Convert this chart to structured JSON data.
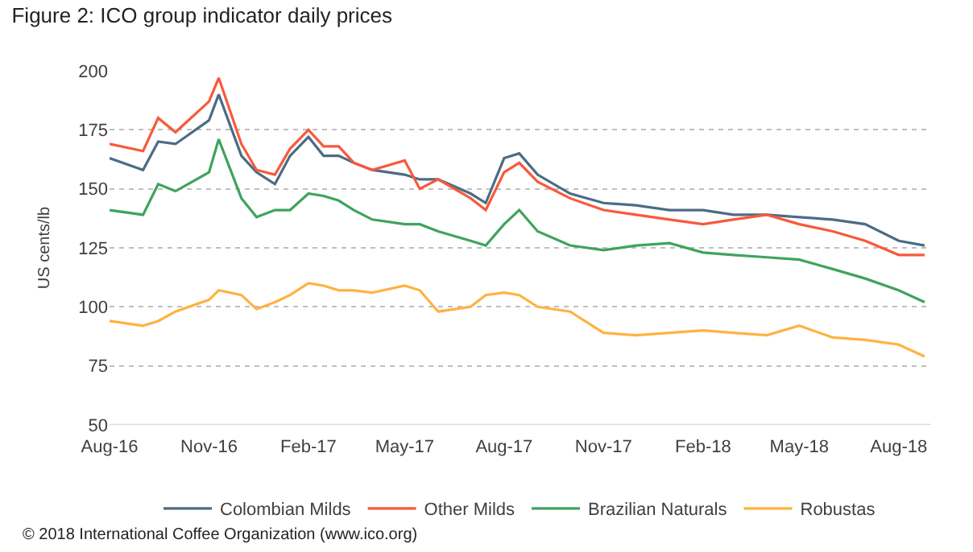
{
  "chart_data": {
    "type": "line",
    "title": "Figure 2: ICO group indicator daily prices",
    "ylabel": "US cents/lb",
    "x": [
      "2016-08-01",
      "2016-09-01",
      "2016-09-15",
      "2016-10-01",
      "2016-11-01",
      "2016-11-10",
      "2016-12-01",
      "2016-12-15",
      "2017-01-01",
      "2017-01-15",
      "2017-02-01",
      "2017-02-15",
      "2017-03-01",
      "2017-03-15",
      "2017-04-01",
      "2017-05-01",
      "2017-05-15",
      "2017-06-01",
      "2017-07-01",
      "2017-07-15",
      "2017-08-01",
      "2017-08-15",
      "2017-09-01",
      "2017-10-01",
      "2017-11-01",
      "2017-12-01",
      "2018-01-01",
      "2018-02-01",
      "2018-03-01",
      "2018-04-01",
      "2018-05-01",
      "2018-06-01",
      "2018-07-01",
      "2018-08-01",
      "2018-08-25"
    ],
    "series": [
      {
        "name": "Colombian Milds",
        "color": "#4b6c85",
        "values": [
          163,
          158,
          170,
          169,
          179,
          190,
          164,
          157,
          152,
          164,
          172,
          164,
          164,
          161,
          158,
          156,
          154,
          154,
          148,
          144,
          163,
          165,
          156,
          148,
          144,
          143,
          141,
          141,
          139,
          139,
          138,
          137,
          135,
          128,
          126
        ]
      },
      {
        "name": "Other Milds",
        "color": "#f8593b",
        "values": [
          169,
          166,
          180,
          174,
          187,
          197,
          169,
          158,
          156,
          167,
          175,
          168,
          168,
          161,
          158,
          162,
          150,
          154,
          146,
          141,
          157,
          161,
          153,
          146,
          141,
          139,
          137,
          135,
          137,
          139,
          135,
          132,
          128,
          122,
          122
        ]
      },
      {
        "name": "Brazilian Naturals",
        "color": "#3fa35e",
        "values": [
          141,
          139,
          152,
          149,
          157,
          171,
          146,
          138,
          141,
          141,
          148,
          147,
          145,
          141,
          137,
          135,
          135,
          132,
          128,
          126,
          135,
          141,
          132,
          126,
          124,
          126,
          127,
          123,
          122,
          121,
          120,
          116,
          112,
          107,
          102
        ]
      },
      {
        "name": "Robustas",
        "color": "#ffb240",
        "values": [
          94,
          92,
          94,
          98,
          103,
          107,
          105,
          99,
          102,
          105,
          110,
          109,
          107,
          107,
          106,
          109,
          107,
          98,
          100,
          105,
          106,
          105,
          100,
          98,
          89,
          88,
          89,
          90,
          89,
          88,
          92,
          87,
          86,
          84,
          79
        ]
      }
    ],
    "xlim": [
      "2016-08-01",
      "2018-08-31"
    ],
    "xticks": [
      {
        "value": "2016-08-01",
        "label": "Aug-16"
      },
      {
        "value": "2016-11-01",
        "label": "Nov-16"
      },
      {
        "value": "2017-02-01",
        "label": "Feb-17"
      },
      {
        "value": "2017-05-01",
        "label": "May-17"
      },
      {
        "value": "2017-08-01",
        "label": "Aug-17"
      },
      {
        "value": "2017-11-01",
        "label": "Nov-17"
      },
      {
        "value": "2018-02-01",
        "label": "Feb-18"
      },
      {
        "value": "2018-05-01",
        "label": "May-18"
      },
      {
        "value": "2018-08-01",
        "label": "Aug-18"
      }
    ],
    "ylim": [
      50,
      200
    ],
    "yticks": [
      50,
      75,
      100,
      125,
      150,
      175,
      200
    ],
    "grid": "y",
    "legend": "bottom",
    "marker": "none",
    "line_style": "solid",
    "annotations": [
      "© 2018 International Coffee Organization (www.ico.org)"
    ]
  }
}
